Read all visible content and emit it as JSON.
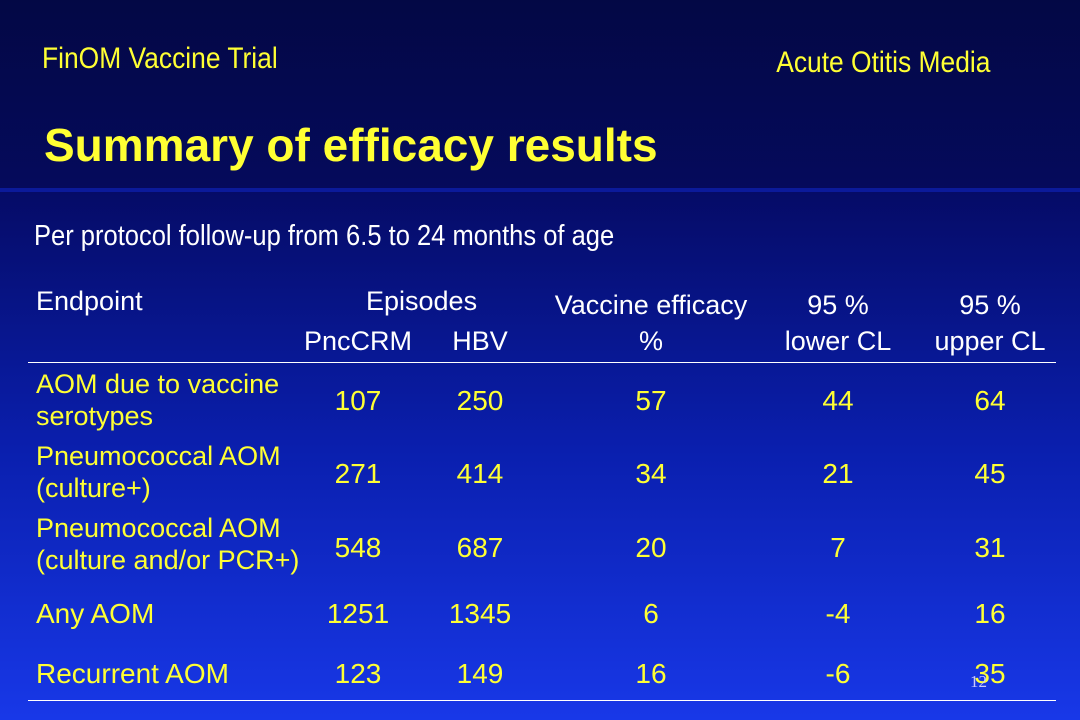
{
  "header": {
    "trial": "FinOM Vaccine Trial",
    "topic": "Acute Otitis Media",
    "title": "Summary of efficacy results"
  },
  "subtitle": "Per protocol follow-up from 6.5 to 24 months of age",
  "table": {
    "columns": {
      "endpoint": "Endpoint",
      "episodes": "Episodes",
      "pnccrm": "PncCRM",
      "hbv": "HBV",
      "efficacy_line1": "Vaccine efficacy",
      "efficacy_line2": "%",
      "lower_line1": "95 %",
      "lower_line2": "lower CL",
      "upper_line1": "95 %",
      "upper_line2": "upper CL"
    },
    "rows": [
      {
        "endpoint": "AOM due to vaccine serotypes",
        "pnccrm": "107",
        "hbv": "250",
        "efficacy": "57",
        "lower": "44",
        "upper": "64"
      },
      {
        "endpoint": "Pneumococcal AOM (culture+)",
        "pnccrm": "271",
        "hbv": "414",
        "efficacy": "34",
        "lower": "21",
        "upper": "45"
      },
      {
        "endpoint": "Pneumococcal AOM (culture and/or PCR+)",
        "pnccrm": "548",
        "hbv": "687",
        "efficacy": "20",
        "lower": "7",
        "upper": "31"
      },
      {
        "endpoint": "Any AOM",
        "pnccrm": "1251",
        "hbv": "1345",
        "efficacy": "6",
        "lower": "-4",
        "upper": "16"
      },
      {
        "endpoint": "Recurrent AOM",
        "pnccrm": "123",
        "hbv": "149",
        "efficacy": "16",
        "lower": "-6",
        "upper": "35"
      }
    ]
  },
  "page_number": "12"
}
